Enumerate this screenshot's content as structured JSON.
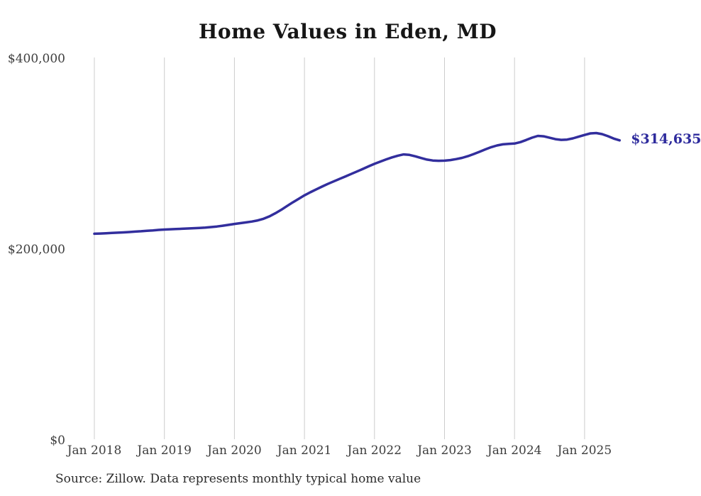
{
  "chart_data": {
    "type": "line",
    "title": "Home Values in Eden, MD",
    "series_name": "Monthly typical home value",
    "frequency": "monthly",
    "start_month": "2018-01",
    "end_month": "2025-07",
    "values": [
      216800,
      217000,
      217300,
      217600,
      217900,
      218200,
      218600,
      219000,
      219400,
      219900,
      220300,
      220800,
      221200,
      221500,
      221800,
      222000,
      222300,
      222600,
      222900,
      223300,
      223800,
      224400,
      225200,
      226100,
      227100,
      227900,
      228700,
      229600,
      230800,
      232500,
      235000,
      238200,
      241800,
      245800,
      249700,
      253400,
      257000,
      260200,
      263300,
      266200,
      269000,
      271600,
      274200,
      276800,
      279400,
      282000,
      284700,
      287400,
      290000,
      292400,
      294700,
      296800,
      298600,
      299900,
      299400,
      297900,
      296100,
      294500,
      293500,
      293200,
      293400,
      294000,
      295000,
      296300,
      298100,
      300300,
      302700,
      305200,
      307500,
      309300,
      310500,
      311000,
      311300,
      312800,
      315000,
      317500,
      319300,
      318900,
      317400,
      315900,
      315200,
      315500,
      316700,
      318500,
      320300,
      321900,
      322300,
      321200,
      319000,
      316500,
      314635
    ],
    "x_tick_labels": [
      "Jan 2018",
      "Jan 2019",
      "Jan 2020",
      "Jan 2021",
      "Jan 2022",
      "Jan 2023",
      "Jan 2024",
      "Jan 2025"
    ],
    "y_ticks": [
      {
        "value": 0,
        "label": "$0"
      },
      {
        "value": 200000,
        "label": "$200,000"
      },
      {
        "value": 400000,
        "label": "$400,000"
      }
    ],
    "ylim": [
      0,
      400000
    ],
    "grid": "vertical-only",
    "legend": "none",
    "end_label": "$314,635",
    "final_value": 314635,
    "line_color": "#322E9D",
    "end_label_color": "#2E2B9D",
    "gridline_color": "#cccccc",
    "source": "Source: Zillow. Data represents monthly typical home value"
  }
}
